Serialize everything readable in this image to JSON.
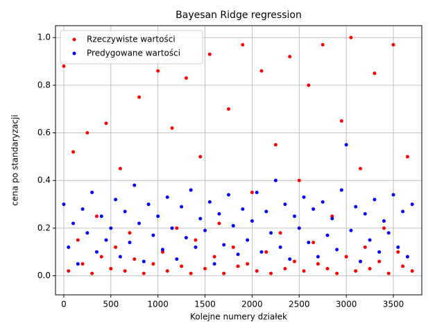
{
  "chart_data": {
    "type": "scatter",
    "title": "Bayesan Ridge regression",
    "xlabel": "Kolejne numery działek",
    "ylabel": "cena po standaryzacji",
    "x": [
      0,
      50,
      100,
      150,
      200,
      250,
      300,
      350,
      400,
      450,
      500,
      550,
      600,
      650,
      700,
      750,
      800,
      850,
      900,
      950,
      1000,
      1050,
      1100,
      1150,
      1200,
      1250,
      1300,
      1350,
      1400,
      1450,
      1500,
      1550,
      1600,
      1650,
      1700,
      1750,
      1800,
      1850,
      1900,
      1950,
      2000,
      2050,
      2100,
      2150,
      2200,
      2250,
      2300,
      2350,
      2400,
      2450,
      2500,
      2550,
      2600,
      2650,
      2700,
      2750,
      2800,
      2850,
      2900,
      2950,
      3000,
      3050,
      3100,
      3150,
      3200,
      3250,
      3300,
      3350,
      3400,
      3450,
      3500,
      3550,
      3600,
      3650,
      3700
    ],
    "series": [
      {
        "name": "Rzeczywiste wartości",
        "color": "#ff0000",
        "values": [
          0.88,
          0.02,
          0.52,
          0.15,
          0.05,
          0.6,
          0.01,
          0.25,
          0.08,
          0.64,
          0.03,
          0.12,
          0.45,
          0.02,
          0.18,
          0.07,
          0.75,
          0.01,
          0.3,
          0.05,
          0.86,
          0.1,
          0.02,
          0.62,
          0.2,
          0.04,
          0.83,
          0.01,
          0.15,
          0.5,
          0.03,
          0.93,
          0.08,
          0.22,
          0.01,
          0.7,
          0.12,
          0.04,
          0.97,
          0.05,
          0.35,
          0.02,
          0.86,
          0.1,
          0.01,
          0.55,
          0.18,
          0.03,
          0.92,
          0.06,
          0.4,
          0.02,
          0.8,
          0.14,
          0.05,
          0.97,
          0.03,
          0.25,
          0.01,
          0.65,
          0.08,
          1.0,
          0.02,
          0.45,
          0.12,
          0.03,
          0.85,
          0.06,
          0.2,
          0.01,
          0.97,
          0.1,
          0.04,
          0.5,
          0.02
        ]
      },
      {
        "name": "Predygowane wartości",
        "color": "#0000ff",
        "values": [
          0.3,
          0.12,
          0.22,
          0.05,
          0.28,
          0.18,
          0.35,
          0.1,
          0.25,
          0.15,
          0.2,
          0.32,
          0.08,
          0.27,
          0.14,
          0.38,
          0.22,
          0.06,
          0.3,
          0.17,
          0.25,
          0.11,
          0.33,
          0.2,
          0.07,
          0.29,
          0.16,
          0.36,
          0.12,
          0.24,
          0.19,
          0.31,
          0.05,
          0.26,
          0.13,
          0.34,
          0.21,
          0.09,
          0.28,
          0.15,
          0.23,
          0.35,
          0.1,
          0.27,
          0.18,
          0.4,
          0.12,
          0.3,
          0.07,
          0.25,
          0.2,
          0.33,
          0.14,
          0.28,
          0.08,
          0.31,
          0.17,
          0.24,
          0.11,
          0.36,
          0.55,
          0.19,
          0.29,
          0.06,
          0.26,
          0.15,
          0.32,
          0.1,
          0.23,
          0.18,
          0.34,
          0.12,
          0.27,
          0.08,
          0.3
        ]
      }
    ],
    "xlim": [
      -88,
      3802
    ],
    "ylim": [
      -0.08,
      1.05
    ],
    "xticks": [
      0,
      500,
      1000,
      1500,
      2000,
      2500,
      3000,
      3500
    ],
    "yticks": [
      {
        "value": 0,
        "label": "0.0"
      },
      0.2,
      0.4,
      0.6,
      0.8,
      {
        "value": 1,
        "label": "1.0"
      }
    ],
    "grid": true,
    "legend": "upper left"
  }
}
